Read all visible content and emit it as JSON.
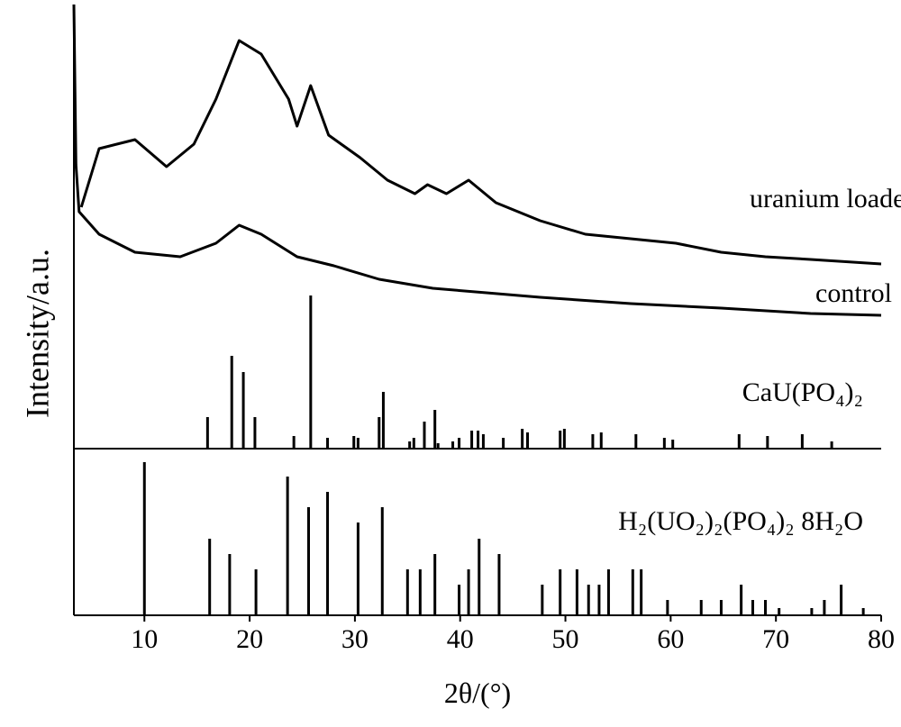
{
  "chart_data": {
    "type": "line",
    "xlabel": "2θ/(°)",
    "ylabel": "Intensity/a.u.",
    "xlim": [
      3.3,
      80
    ],
    "xticks": [
      10,
      20,
      30,
      40,
      50,
      60,
      70,
      80
    ],
    "ylim": [
      0,
      678
    ],
    "series": [
      {
        "name": "uranium loaded",
        "color": "#000000",
        "style": "line",
        "x": [
          4.0,
          5.7,
          9.1,
          12.1,
          14.7,
          16.8,
          19.0,
          21.1,
          23.7,
          24.5,
          25.8,
          27.5,
          30.5,
          33.1,
          35.7,
          36.9,
          38.7,
          40.8,
          43.4,
          47.6,
          51.9,
          56.2,
          60.5,
          64.8,
          69.0,
          73.3,
          80.0
        ],
        "values": [
          453,
          518,
          528,
          498,
          523,
          573,
          638,
          623,
          573,
          543,
          588,
          533,
          508,
          483,
          468,
          478,
          468,
          483,
          458,
          438,
          423,
          418,
          413,
          403,
          398,
          395,
          390
        ]
      },
      {
        "name": "control",
        "color": "#000000",
        "style": "line",
        "x": [
          3.3,
          3.5,
          3.8,
          5.7,
          9.1,
          13.4,
          16.8,
          19.0,
          21.1,
          24.5,
          28.0,
          32.3,
          37.4,
          42.5,
          47.6,
          56.2,
          64.8,
          73.3,
          80.0
        ],
        "values": [
          678,
          500,
          448,
          423,
          403,
          398,
          413,
          433,
          423,
          398,
          388,
          373,
          363,
          358,
          353,
          346,
          341,
          335,
          333
        ]
      },
      {
        "name": "CaU(PO₄)₂",
        "color": "#000000",
        "style": "sticks",
        "baseline": 185,
        "x": [
          16.0,
          18.3,
          19.4,
          20.5,
          24.2,
          25.8,
          27.4,
          29.9,
          30.3,
          32.3,
          32.7,
          35.2,
          35.6,
          36.6,
          37.6,
          37.9,
          39.3,
          39.9,
          41.1,
          41.7,
          42.2,
          44.1,
          45.9,
          46.4,
          49.5,
          49.9,
          52.6,
          53.4,
          56.7,
          59.4,
          60.2,
          66.5,
          69.2,
          72.5,
          75.3
        ],
        "values": [
          220,
          288,
          270,
          220,
          199,
          355,
          197,
          199,
          197,
          220,
          248,
          193,
          197,
          215,
          228,
          191,
          193,
          197,
          205,
          205,
          201,
          197,
          207,
          203,
          205,
          207,
          201,
          203,
          201,
          197,
          195,
          201,
          199,
          201,
          193
        ]
      },
      {
        "name": "H₂(UO₂)₂(PO₄)₂ 8H₂O",
        "color": "#000000",
        "style": "sticks",
        "baseline": 0,
        "x": [
          10.0,
          16.2,
          18.1,
          20.6,
          23.6,
          25.6,
          27.4,
          30.3,
          32.6,
          35.0,
          36.2,
          37.6,
          39.9,
          40.8,
          41.8,
          43.7,
          47.8,
          49.5,
          51.1,
          52.2,
          53.2,
          54.1,
          56.4,
          57.2,
          59.7,
          62.9,
          64.8,
          66.7,
          67.8,
          69.0,
          70.3,
          73.4,
          74.6,
          76.2,
          78.3
        ],
        "values": [
          170,
          85,
          68,
          51,
          154,
          120,
          137,
          103,
          120,
          51,
          51,
          68,
          34,
          51,
          85,
          68,
          34,
          51,
          51,
          34,
          34,
          51,
          51,
          51,
          17,
          17,
          17,
          34,
          17,
          17,
          8,
          8,
          17,
          34,
          8
        ]
      }
    ]
  }
}
